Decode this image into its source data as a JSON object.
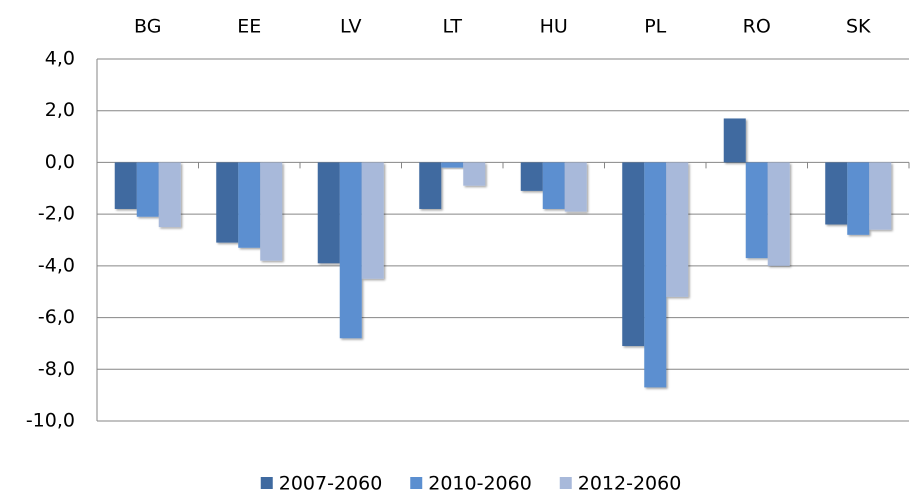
{
  "chart_data": {
    "type": "bar",
    "categories": [
      "BG",
      "EE",
      "LV",
      "LT",
      "HU",
      "PL",
      "RO",
      "SK"
    ],
    "series": [
      {
        "name": "2007-2060",
        "color": "#3f6aa0",
        "values": [
          -1.8,
          -3.1,
          -3.9,
          -1.8,
          -1.1,
          -7.1,
          1.7,
          -2.4
        ]
      },
      {
        "name": "2010-2060",
        "color": "#5b8fd0",
        "values": [
          -2.1,
          -3.3,
          -6.8,
          -0.2,
          -1.8,
          -8.7,
          -3.7,
          -2.8
        ]
      },
      {
        "name": "2012-2060",
        "color": "#a8b9da",
        "values": [
          -2.5,
          -3.8,
          -4.5,
          -0.9,
          -1.9,
          -5.2,
          -4.0,
          -2.6
        ]
      }
    ],
    "ylim": [
      -10,
      4
    ],
    "yticks": [
      {
        "value": -10,
        "label": "-10,0"
      },
      {
        "value": -8,
        "label": "-8,0"
      },
      {
        "value": -6,
        "label": "-6,0"
      },
      {
        "value": -4,
        "label": "-4,0"
      },
      {
        "value": -2,
        "label": "-2,0"
      },
      {
        "value": 0,
        "label": "0,0"
      },
      {
        "value": 2,
        "label": "2,0"
      },
      {
        "value": 4,
        "label": "4,0"
      }
    ],
    "grid": true
  }
}
